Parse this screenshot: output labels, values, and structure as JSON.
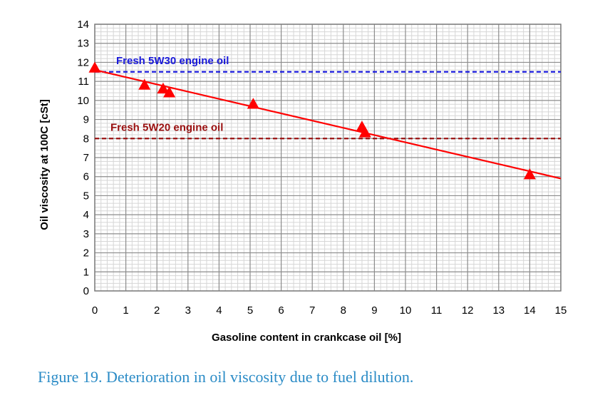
{
  "chart_data": {
    "type": "scatter",
    "xlabel": "Gasoline content in crankcase oil [%]",
    "ylabel": "Oil viscosity at 100C [cSt]",
    "xlim": [
      0,
      15
    ],
    "ylim": [
      0,
      14
    ],
    "x_ticks": [
      0,
      1,
      2,
      3,
      4,
      5,
      6,
      7,
      8,
      9,
      10,
      11,
      12,
      13,
      14,
      15
    ],
    "y_ticks": [
      0,
      1,
      2,
      3,
      4,
      5,
      6,
      7,
      8,
      9,
      10,
      11,
      12,
      13,
      14
    ],
    "grid": true,
    "minor_grid": true,
    "series": [
      {
        "marker": "triangle",
        "color": "#ff0000",
        "points": [
          {
            "x": 0,
            "y": 11.7
          },
          {
            "x": 1.6,
            "y": 10.8
          },
          {
            "x": 2.2,
            "y": 10.6
          },
          {
            "x": 2.4,
            "y": 10.4
          },
          {
            "x": 5.1,
            "y": 9.8
          },
          {
            "x": 8.6,
            "y": 8.6
          },
          {
            "x": 8.7,
            "y": 8.3
          },
          {
            "x": 14.0,
            "y": 6.1
          }
        ]
      }
    ],
    "trendline": {
      "color": "#ff0000",
      "x": [
        0,
        15
      ],
      "y": [
        11.6,
        5.9
      ]
    },
    "reference_lines": [
      {
        "label": "Fresh 5W30 engine oil",
        "y": 11.5,
        "color": "#1a1adb",
        "style": "dashed"
      },
      {
        "label": "Fresh 5W20 engine oil",
        "y": 8.0,
        "color": "#9b1111",
        "style": "dashed"
      }
    ]
  },
  "caption": "Figure 19. Deterioration in oil viscosity due to fuel dilution."
}
